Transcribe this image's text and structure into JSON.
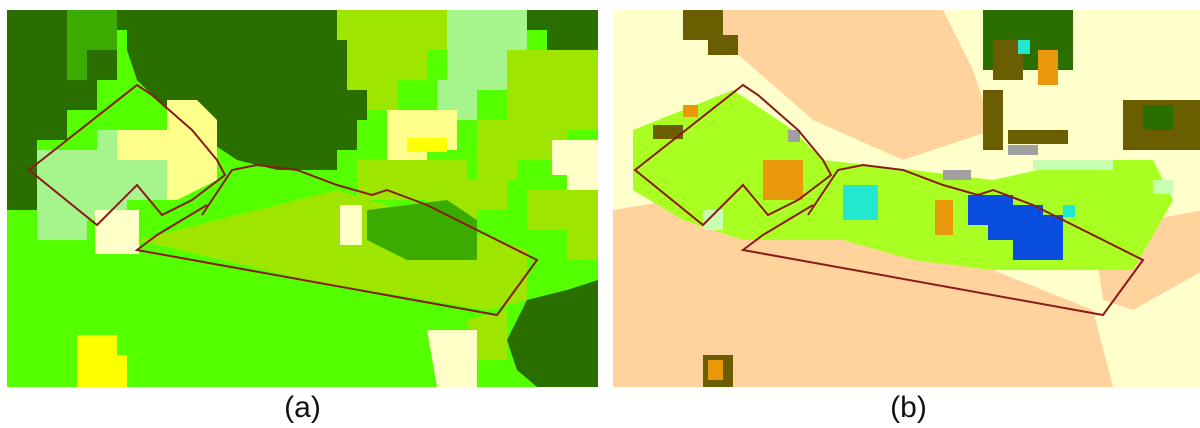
{
  "panels": [
    {
      "id": "a",
      "caption": "(a)",
      "colors": {
        "dark_forest": "#2b6e00",
        "mid_green": "#3cab00",
        "bright_green": "#54ff00",
        "yellow_green": "#9ee600",
        "light_green": "#a6f58c",
        "pale_yellow": "#ffff8c",
        "cream": "#ffffc8",
        "yellow": "#ffff00",
        "boundary": "#8b1a1a"
      }
    },
    {
      "id": "b",
      "caption": "(b)",
      "colors": {
        "peach": "#ffd39b",
        "cream": "#ffffcc",
        "lime": "#aaff22",
        "dark_olive": "#6b5e00",
        "dark_green": "#2b6e00",
        "orange": "#e8980a",
        "cyan": "#22e8d0",
        "blue": "#0a4ee0",
        "grey": "#a0a0a0",
        "pale_green": "#c8ffb0",
        "boundary": "#8b1a1a"
      }
    }
  ]
}
